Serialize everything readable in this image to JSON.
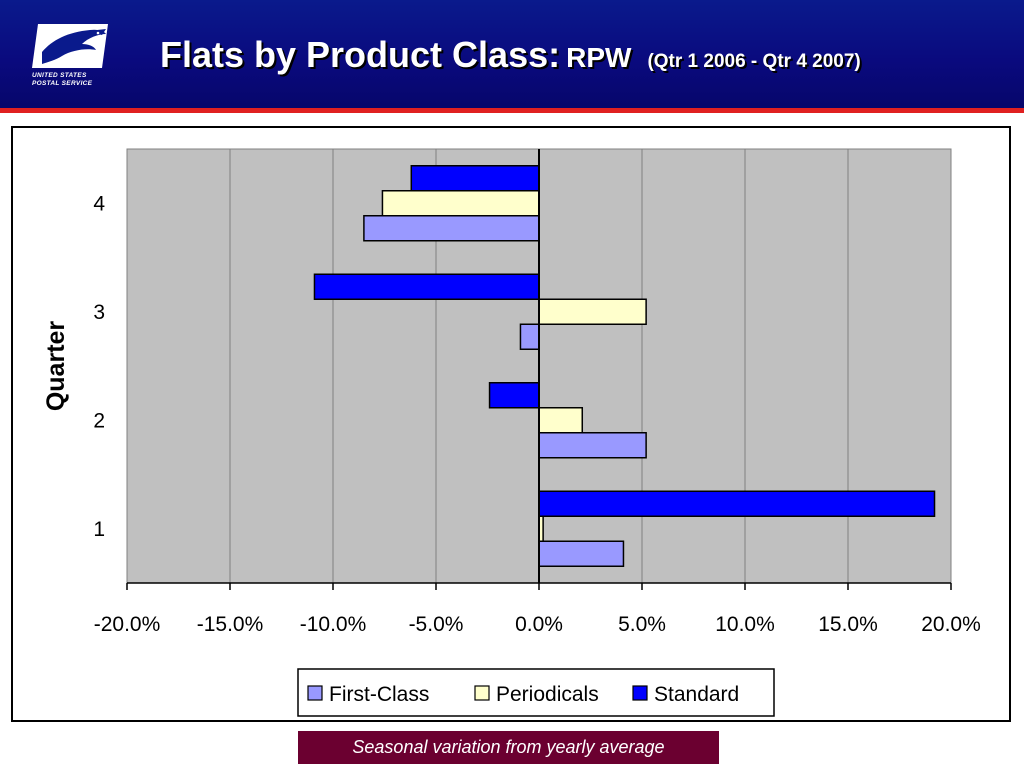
{
  "header": {
    "logo_line1": "UNITED STATES",
    "logo_line2": "POSTAL SERVICE",
    "title_main": "Flats by Product Class:",
    "title_rpw": "RPW",
    "title_range": "(Qtr 1 2006 - Qtr 4 2007)"
  },
  "caption": "Seasonal variation from yearly average",
  "colors": {
    "header_bg": "#0a0a7e",
    "header_rule": "#e02020",
    "plot_bg": "#c0c0c0",
    "caption_bg": "#6b0030"
  },
  "chart_data": {
    "type": "bar",
    "orientation": "horizontal",
    "ylabel": "Quarter",
    "xlabel": "",
    "categories": [
      "1",
      "2",
      "3",
      "4"
    ],
    "xlim": [
      -20,
      20
    ],
    "xticks": [
      "-20.0%",
      "-15.0%",
      "-10.0%",
      "-5.0%",
      "0.0%",
      "5.0%",
      "10.0%",
      "15.0%",
      "20.0%"
    ],
    "grid": "vertical",
    "legend_position": "bottom",
    "series": [
      {
        "name": "First-Class",
        "color": "#9999ff",
        "values": [
          4.1,
          5.2,
          -0.9,
          -8.5
        ]
      },
      {
        "name": "Periodicals",
        "color": "#ffffcc",
        "values": [
          0.2,
          2.1,
          5.2,
          -7.6
        ]
      },
      {
        "name": "Standard",
        "color": "#0000ff",
        "values": [
          19.2,
          -2.4,
          -10.9,
          -6.2
        ]
      }
    ]
  }
}
